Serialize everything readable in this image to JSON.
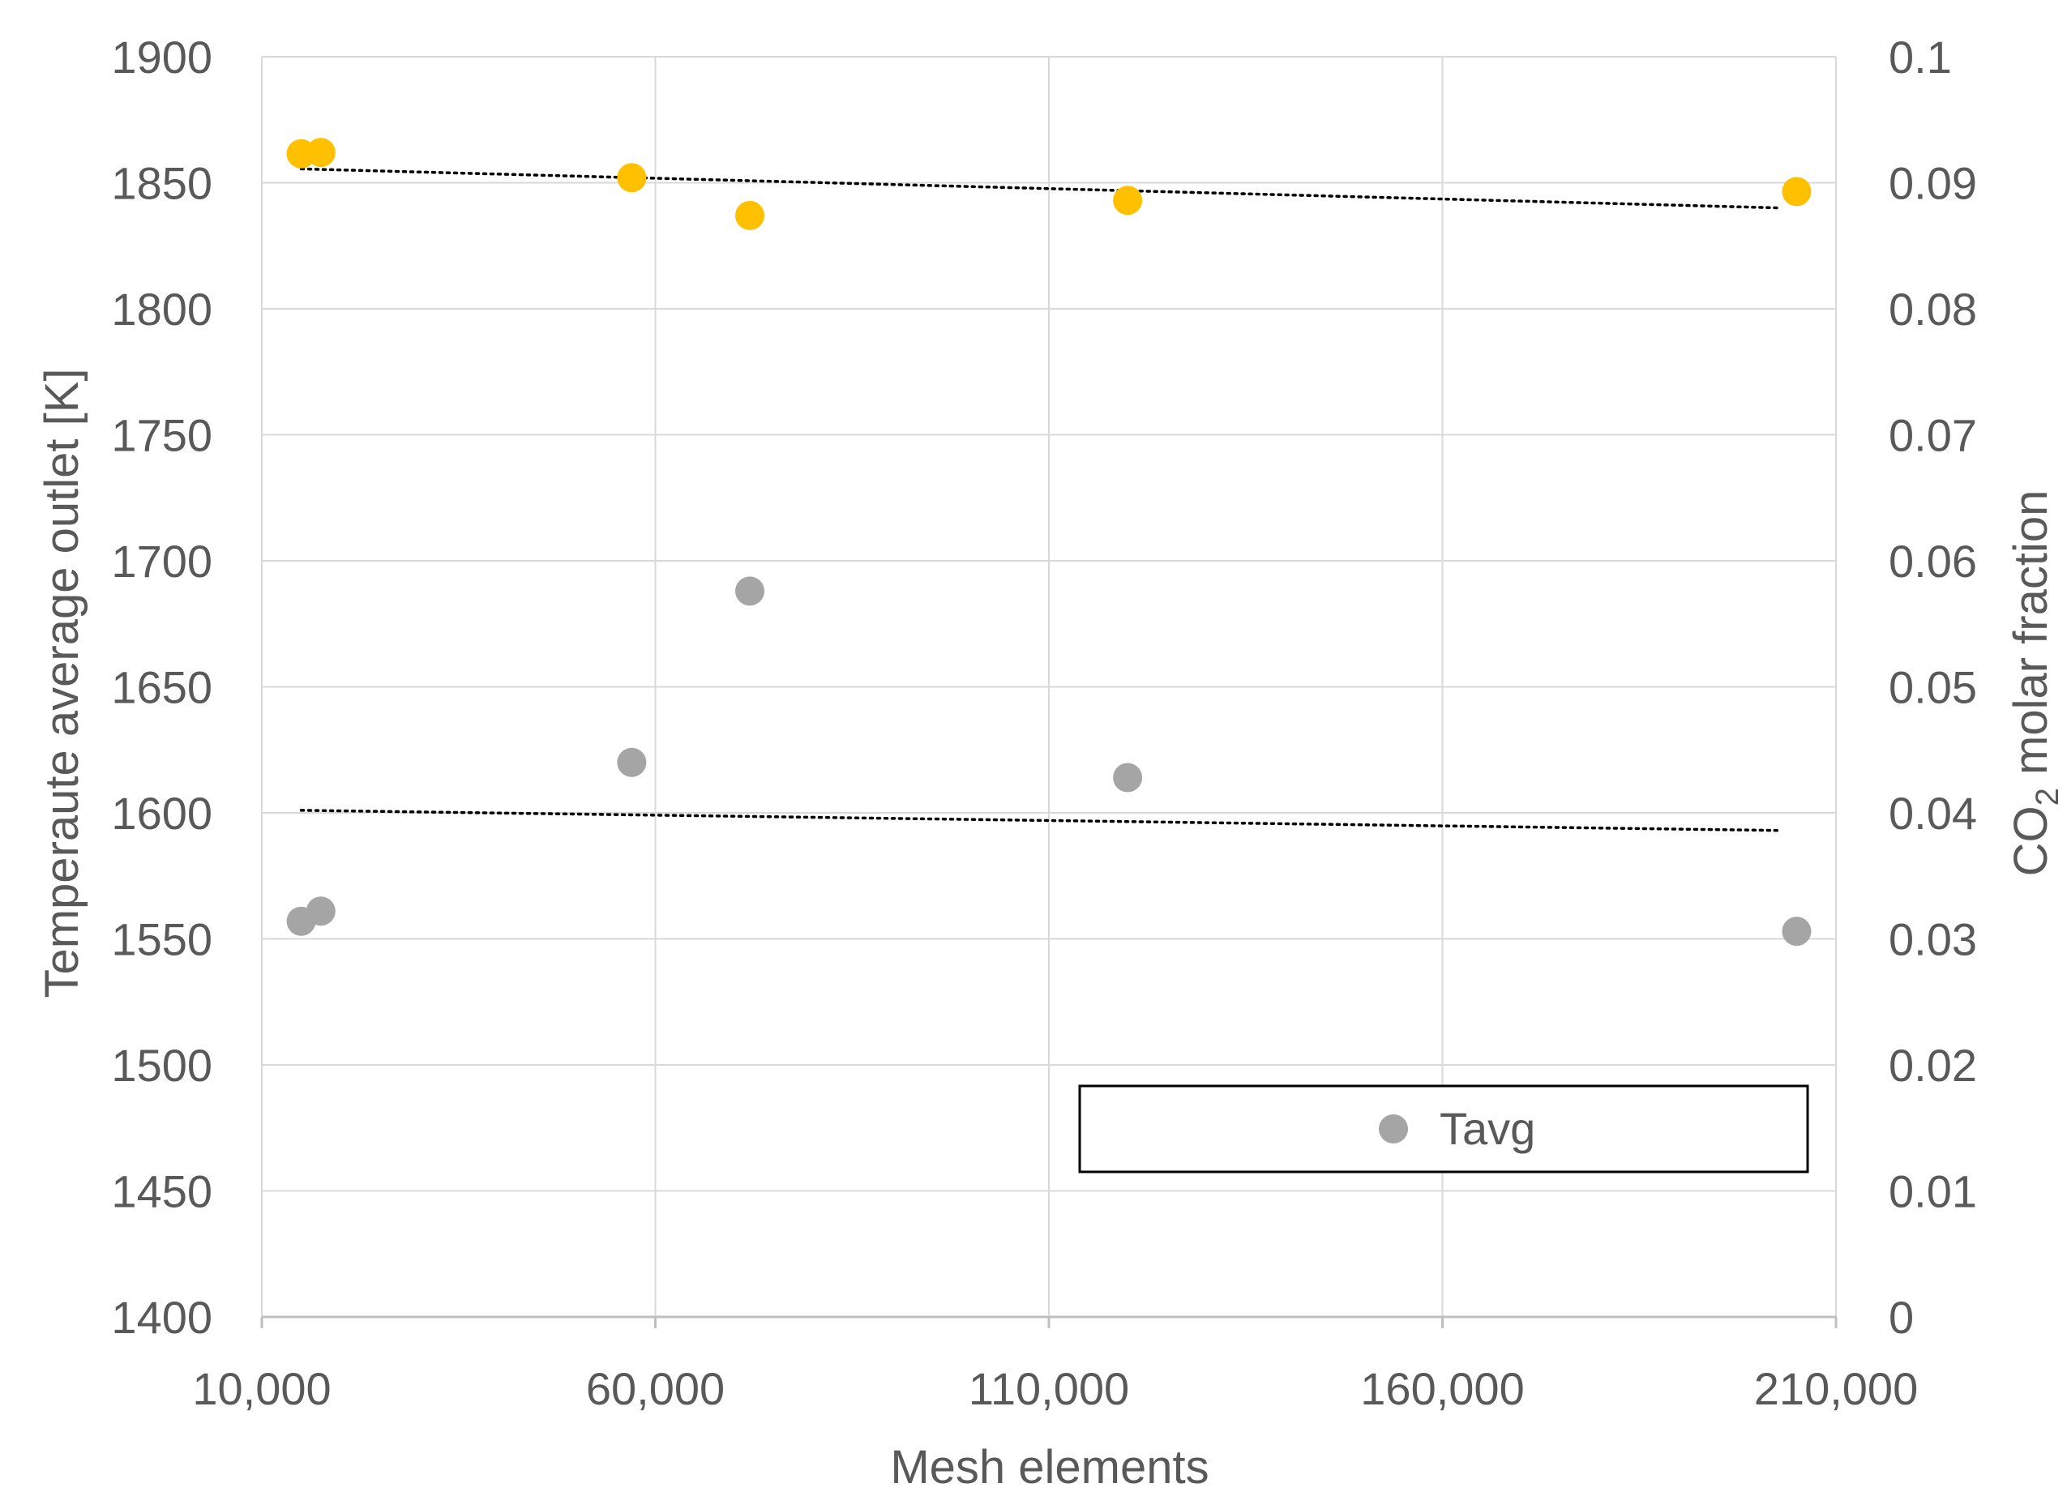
{
  "chart_data": {
    "type": "scatter",
    "title": "",
    "xlabel": "Mesh elements",
    "ylabel": "Temperaute average outlet [K]",
    "y2label": {
      "prefix": "CO",
      "sub": "2",
      "suffix": " molar fraction"
    },
    "xlim": [
      10000,
      210000
    ],
    "ylim": [
      1400,
      1900
    ],
    "y2lim": [
      0,
      0.1
    ],
    "x_ticks": [
      10000,
      60000,
      110000,
      160000,
      210000
    ],
    "x_tick_labels": [
      "10,000",
      "60,000",
      "110,000",
      "160,000",
      "210,000"
    ],
    "y_ticks": [
      1400,
      1450,
      1500,
      1550,
      1600,
      1650,
      1700,
      1750,
      1800,
      1850,
      1900
    ],
    "y_tick_labels": [
      "1400",
      "1450",
      "1500",
      "1550",
      "1600",
      "1650",
      "1700",
      "1750",
      "1800",
      "1850",
      "1900"
    ],
    "y2_ticks": [
      0,
      0.01,
      0.02,
      0.03,
      0.04,
      0.05,
      0.06,
      0.07,
      0.08,
      0.09,
      0.1
    ],
    "y2_tick_labels": [
      "0",
      "0.01",
      "0.02",
      "0.03",
      "0.04",
      "0.05",
      "0.06",
      "0.07",
      "0.08",
      "0.09",
      "0.1"
    ],
    "grid": true,
    "legend_position": "bottom-right",
    "series": [
      {
        "name": "Tavg",
        "axis": "left",
        "color": "#a5a5a5",
        "in_legend": true,
        "x": [
          15000,
          17500,
          57000,
          72000,
          120000,
          205000
        ],
        "y": [
          1557,
          1561,
          1620,
          1688,
          1614,
          1553
        ]
      },
      {
        "axis": "right",
        "color": "#ffc000",
        "in_legend": false,
        "x": [
          15000,
          17500,
          57000,
          72000,
          120000,
          205000
        ],
        "y": [
          0.0923,
          0.0924,
          0.0904,
          0.0874,
          0.0886,
          0.0893
        ]
      }
    ],
    "trendlines": [
      {
        "of": "Tavg",
        "axis": "left",
        "x": [
          15000,
          203000
        ],
        "y": [
          1601,
          1593
        ],
        "style": "dotted",
        "color": "#000000"
      },
      {
        "of": "co2",
        "axis": "right",
        "x": [
          15000,
          203000
        ],
        "y": [
          0.0911,
          0.088
        ],
        "style": "dotted",
        "color": "#000000"
      }
    ],
    "legend": [
      {
        "label": "Tavg",
        "color": "#a5a5a5"
      }
    ]
  }
}
